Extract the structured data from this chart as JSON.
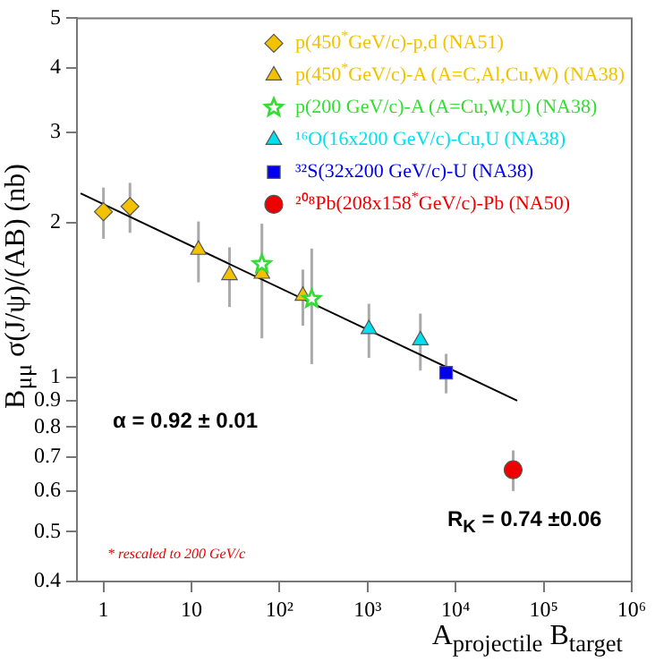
{
  "chart_data": {
    "type": "scatter",
    "log": "xy",
    "grid": false,
    "legend": "top right",
    "ylabel": "B$_{μμ}$ σ(J/ψ)/(AB) (nb)",
    "xlabel": "A$_{projectile}$ B$_{target}$",
    "xlim": [
      0.5,
      1000000
    ],
    "ylim": [
      0.4,
      5
    ],
    "xticks": [
      1,
      10,
      {
        "value": 100,
        "label": "10²"
      },
      {
        "value": 1000,
        "label": "10³"
      },
      {
        "value": 10000,
        "label": "10⁴"
      },
      {
        "value": 100000,
        "label": "10⁵"
      },
      {
        "value": 1000000,
        "label": "10⁶"
      }
    ],
    "yticks": [
      0.4,
      0.5,
      0.6,
      0.7,
      0.8,
      0.9,
      1,
      2,
      3,
      4,
      5
    ],
    "annotations": [
      "α = 0.92 ± 0.01",
      "R$_{K}$ = 0.74 ±0.06",
      "* rescaled to 200 GeV/c"
    ],
    "series": [
      {
        "name": "p(450$^{*}$GeV/c)-p,d (NA51)",
        "color": "#f2c200",
        "marker": "diamond",
        "x": [
          1,
          2
        ],
        "values": [
          2.1,
          2.15
        ],
        "errors": [
          0.24,
          0.24
        ]
      },
      {
        "name": "p(450$^{*}$GeV/c)-A (A=C,Al,Cu,W) (NA38)",
        "color": "#f2c200",
        "marker": "triangle",
        "x": [
          12,
          27,
          63,
          184
        ],
        "values": [
          1.77,
          1.58,
          1.59,
          1.44
        ],
        "errors": [
          0.24,
          0.21,
          0.4,
          0.18
        ]
      },
      {
        "name": "p(200 GeV/c)-A (A=Cu,W,U) (NA38)",
        "color": "#33dd33",
        "marker": "star",
        "x": [
          63,
          232
        ],
        "values": [
          1.66,
          1.42
        ],
        "errors": [
          0.08,
          0.36
        ]
      },
      {
        "name": "¹⁶O(16x200 GeV/c)-Cu,U (NA38)",
        "color": "#00e0ee",
        "marker": "triangle",
        "x": [
          1035,
          3976
        ],
        "values": [
          1.24,
          1.18
        ],
        "errors": [
          0.15,
          0.15
        ]
      },
      {
        "name": "³²S(32x200 GeV/c)-U (NA38)",
        "color": "#0000ee",
        "marker": "square",
        "x": [
          7800
        ],
        "values": [
          1.02
        ],
        "errors": [
          0.09
        ]
      },
      {
        "name": "²⁰⁸Pb(208x158$^{*}$GeV/c)-Pb (NA50)",
        "color": "#ee0000",
        "marker": "circle",
        "x": [
          45000
        ],
        "values": [
          0.66
        ],
        "errors": [
          0.06
        ]
      },
      {
        "type": "line",
        "color": "#000000",
        "marker": "none",
        "line_style": "solid",
        "x": [
          0.55,
          50000
        ],
        "values": [
          2.28,
          0.9
        ]
      }
    ]
  }
}
